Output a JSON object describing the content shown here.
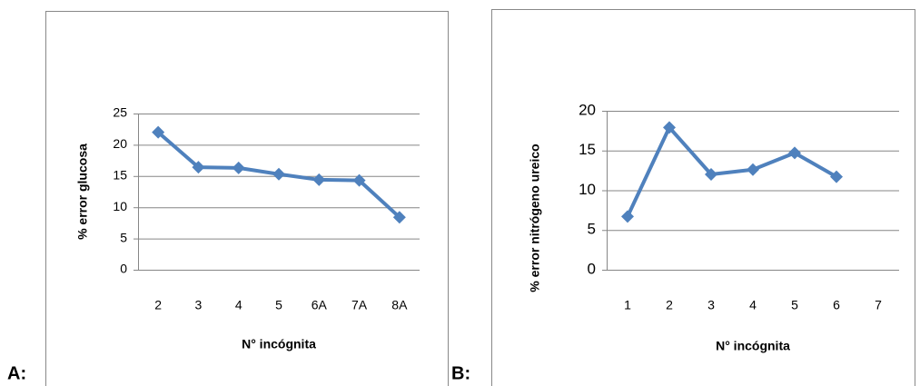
{
  "chart_data": [
    {
      "type": "line",
      "panel_label": "A:",
      "xlabel": "N° incógnita",
      "ylabel": "% error glucosa",
      "categories": [
        "2",
        "3",
        "4",
        "5",
        "6A",
        "7A",
        "8A"
      ],
      "series": [
        {
          "color": "#4f81bd",
          "values": [
            22,
            16.4,
            16.3,
            15.3,
            14.4,
            14.3,
            8.4
          ]
        }
      ],
      "ylim": [
        0,
        25
      ],
      "yticks": [
        0,
        5,
        10,
        15,
        20,
        25
      ],
      "grid": true
    },
    {
      "type": "line",
      "panel_label": "B:",
      "xlabel": "N°  incógnita",
      "ylabel": "% error nitrógeno ureico",
      "categories": [
        "1",
        "2",
        "3",
        "4",
        "5",
        "6",
        "7"
      ],
      "series": [
        {
          "color": "#4f81bd",
          "values": [
            6.7,
            17.9,
            12,
            12.6,
            14.7,
            11.7,
            null
          ]
        }
      ],
      "ylim": [
        0,
        20
      ],
      "yticks": [
        0,
        5,
        10,
        15,
        20
      ],
      "grid": true
    }
  ]
}
